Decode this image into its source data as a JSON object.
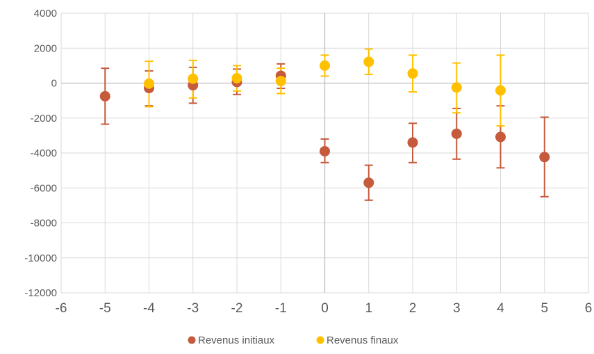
{
  "chart_data": {
    "type": "scatter",
    "title": "",
    "xlabel": "",
    "ylabel": "",
    "xlim": [
      -6,
      6
    ],
    "ylim": [
      -12000,
      4000
    ],
    "x_ticks": [
      "-6",
      "-5",
      "-4",
      "-3",
      "-2",
      "-1",
      "0",
      "1",
      "2",
      "3",
      "4",
      "5",
      "6"
    ],
    "y_ticks": [
      "4000",
      "2000",
      "0",
      "-2000",
      "-4000",
      "-6000",
      "-8000",
      "-10000",
      "-12000"
    ],
    "grid": true,
    "legend_position": "bottom",
    "series": [
      {
        "name": "Revenus initiaux",
        "color": "#C55A3C",
        "points": [
          {
            "x": -5,
            "y": -750,
            "low": -2350,
            "high": 850
          },
          {
            "x": -4,
            "y": -280,
            "low": -1300,
            "high": 700
          },
          {
            "x": -3,
            "y": -120,
            "low": -1150,
            "high": 900
          },
          {
            "x": -2,
            "y": 60,
            "low": -650,
            "high": 800
          },
          {
            "x": -1,
            "y": 420,
            "low": -300,
            "high": 1100
          },
          {
            "x": 0,
            "y": -3900,
            "low": -4550,
            "high": -3200
          },
          {
            "x": 1,
            "y": -5700,
            "low": -6700,
            "high": -4700
          },
          {
            "x": 2,
            "y": -3400,
            "low": -4550,
            "high": -2300
          },
          {
            "x": 3,
            "y": -2900,
            "low": -4350,
            "high": -1450
          },
          {
            "x": 4,
            "y": -3080,
            "low": -4850,
            "high": -1300
          },
          {
            "x": 5,
            "y": -4230,
            "low": -6500,
            "high": -1950
          }
        ]
      },
      {
        "name": "Revenus finaux",
        "color": "#FFC000",
        "points": [
          {
            "x": -4,
            "y": -30,
            "low": -1350,
            "high": 1250
          },
          {
            "x": -3,
            "y": 250,
            "low": -850,
            "high": 1300
          },
          {
            "x": -2,
            "y": 280,
            "low": -450,
            "high": 1000
          },
          {
            "x": -1,
            "y": 120,
            "low": -600,
            "high": 850
          },
          {
            "x": 0,
            "y": 1000,
            "low": 400,
            "high": 1600
          },
          {
            "x": 1,
            "y": 1220,
            "low": 500,
            "high": 1950
          },
          {
            "x": 2,
            "y": 550,
            "low": -500,
            "high": 1600
          },
          {
            "x": 3,
            "y": -250,
            "low": -1700,
            "high": 1150
          },
          {
            "x": 4,
            "y": -420,
            "low": -2450,
            "high": 1600
          }
        ]
      }
    ]
  }
}
